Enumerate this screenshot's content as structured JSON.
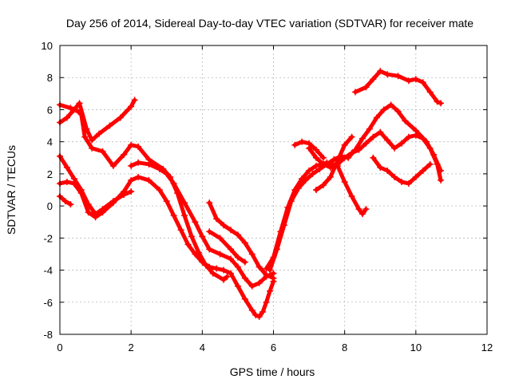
{
  "chart_data": {
    "type": "scatter",
    "title": "Day 256 of 2014, Sidereal Day-to-day VTEC variation (SDTVAR) for receiver mate",
    "xlabel": "GPS time / hours",
    "ylabel": "SDTVAR / TECUs",
    "xlim": [
      0,
      12
    ],
    "ylim": [
      -8,
      10
    ],
    "x_ticks": [
      0,
      2,
      4,
      6,
      8,
      10,
      12
    ],
    "y_ticks": [
      -8,
      -6,
      -4,
      -2,
      0,
      2,
      4,
      6,
      8,
      10
    ],
    "grid": true,
    "marker": "plus",
    "color": "#ff0000",
    "series": [
      {
        "x": [
          0.0,
          0.2,
          0.4,
          0.55,
          0.75,
          0.9,
          1.1,
          1.4,
          1.7,
          2.0,
          2.1
        ],
        "y": [
          5.2,
          5.5,
          6.0,
          6.4,
          4.8,
          4.1,
          4.5,
          5.0,
          5.5,
          6.2,
          6.6
        ]
      },
      {
        "x": [
          0.0,
          0.3,
          0.45,
          0.6,
          0.7,
          0.9,
          1.2,
          1.5,
          1.8,
          2.0,
          2.2,
          2.5,
          2.9,
          3.1,
          3.3,
          3.5,
          3.7,
          3.9,
          4.1,
          4.3,
          4.6,
          4.7
        ],
        "y": [
          6.3,
          6.1,
          6.0,
          5.7,
          4.3,
          3.6,
          3.4,
          2.5,
          3.2,
          3.8,
          3.7,
          2.9,
          2.3,
          1.8,
          0.8,
          -0.6,
          -1.9,
          -2.9,
          -3.7,
          -4.2,
          -4.6,
          -4.4
        ]
      },
      {
        "x": [
          0.0,
          0.2,
          0.4,
          0.6,
          0.8,
          1.0,
          1.2,
          1.5,
          1.8,
          2.0
        ],
        "y": [
          3.1,
          2.4,
          1.7,
          1.0,
          0.1,
          -0.5,
          -0.2,
          0.3,
          0.7,
          0.9
        ]
      },
      {
        "x": [
          0.0,
          0.2,
          0.4,
          0.6,
          0.8,
          1.0,
          1.2,
          1.5,
          1.8,
          2.0,
          2.2,
          2.5,
          2.8,
          3.0,
          3.2,
          3.4,
          3.6,
          3.8,
          4.0,
          4.2,
          4.4,
          4.6,
          4.8,
          5.0,
          5.2,
          5.4,
          5.5,
          5.6,
          5.7,
          5.8,
          5.9,
          6.0
        ],
        "y": [
          1.4,
          1.5,
          1.4,
          0.8,
          -0.4,
          -0.7,
          -0.4,
          0.2,
          0.9,
          1.6,
          1.8,
          1.6,
          1.0,
          0.3,
          -0.6,
          -1.5,
          -2.4,
          -3.0,
          -3.5,
          -3.8,
          -3.9,
          -4.0,
          -4.2,
          -5.0,
          -5.8,
          -6.5,
          -6.8,
          -6.9,
          -6.6,
          -6.0,
          -5.3,
          -4.7
        ]
      },
      {
        "x": [
          0.0,
          0.15,
          0.3
        ],
        "y": [
          0.6,
          0.3,
          0.1
        ]
      },
      {
        "x": [
          2.0,
          2.2,
          2.5,
          2.8,
          3.0,
          3.2,
          3.5,
          3.8,
          4.0,
          4.2,
          4.5,
          4.8,
          5.0,
          5.2,
          5.4,
          5.6,
          5.8,
          6.0
        ],
        "y": [
          2.5,
          2.7,
          2.6,
          2.3,
          2.0,
          1.4,
          0.2,
          -1.0,
          -1.9,
          -2.7,
          -3.0,
          -3.3,
          -3.8,
          -4.5,
          -5.0,
          -4.8,
          -4.4,
          -4.2
        ]
      },
      {
        "x": [
          4.2,
          4.4,
          4.6,
          4.8,
          5.0,
          5.2,
          5.4,
          5.6,
          5.8,
          6.0
        ],
        "y": [
          0.2,
          -0.8,
          -1.2,
          -1.5,
          -1.8,
          -2.3,
          -3.0,
          -3.8,
          -4.3,
          -4.5
        ]
      },
      {
        "x": [
          4.2,
          4.5,
          4.8,
          5.0,
          5.2
        ],
        "y": [
          -1.6,
          -2.0,
          -2.7,
          -3.2,
          -3.5
        ]
      },
      {
        "x": [
          5.8,
          6.0,
          6.2,
          6.4,
          6.6,
          6.8,
          7.0,
          7.2,
          7.5,
          7.8,
          8.0,
          8.2,
          8.4,
          8.5,
          8.6
        ],
        "y": [
          -3.9,
          -3.2,
          -1.6,
          -0.1,
          1.0,
          1.7,
          2.2,
          2.5,
          2.7,
          2.5,
          1.5,
          0.6,
          -0.2,
          -0.5,
          -0.2
        ]
      },
      {
        "x": [
          5.9,
          6.1,
          6.3,
          6.5,
          6.7,
          6.9,
          7.1,
          7.3,
          7.5,
          7.7,
          7.9,
          8.1,
          8.3,
          8.5,
          8.7,
          8.9,
          9.1,
          9.3,
          9.5,
          9.7,
          10.0,
          10.3,
          10.5,
          10.7
        ],
        "y": [
          -4.0,
          -2.7,
          -1.2,
          0.3,
          1.1,
          1.6,
          2.0,
          2.3,
          2.6,
          2.9,
          3.1,
          3.0,
          3.5,
          4.2,
          4.8,
          5.5,
          6.0,
          6.3,
          5.9,
          5.3,
          4.7,
          4.0,
          3.2,
          2.2
        ]
      },
      {
        "x": [
          7.0,
          7.2,
          7.4,
          7.6,
          7.8,
          8.0,
          8.2,
          8.4,
          8.6,
          8.8,
          9.0,
          9.2,
          9.4,
          9.6,
          9.8,
          10.0,
          10.2,
          10.4,
          10.6,
          10.7
        ],
        "y": [
          3.6,
          3.0,
          2.6,
          2.4,
          2.6,
          3.0,
          3.3,
          3.5,
          3.9,
          4.3,
          4.6,
          4.1,
          3.6,
          3.9,
          4.3,
          4.4,
          4.2,
          3.6,
          2.6,
          1.6
        ]
      },
      {
        "x": [
          6.6,
          6.8,
          7.0,
          7.2,
          7.4
        ],
        "y": [
          3.8,
          4.0,
          3.9,
          3.5,
          3.0
        ]
      },
      {
        "x": [
          7.2,
          7.4,
          7.6,
          7.8,
          8.0,
          8.2
        ],
        "y": [
          1.0,
          1.3,
          1.8,
          2.8,
          3.8,
          4.3
        ]
      },
      {
        "x": [
          8.8,
          9.0,
          9.2,
          9.4,
          9.6,
          9.8,
          10.0,
          10.2,
          10.4
        ],
        "y": [
          3.0,
          2.4,
          2.2,
          1.8,
          1.5,
          1.4,
          1.8,
          2.2,
          2.6
        ]
      },
      {
        "x": [
          8.3,
          8.6,
          8.8,
          9.0,
          9.2,
          9.5,
          9.8,
          10.0,
          10.2,
          10.4,
          10.6,
          10.7
        ],
        "y": [
          7.1,
          7.4,
          7.9,
          8.4,
          8.2,
          8.1,
          7.8,
          7.9,
          7.7,
          7.1,
          6.5,
          6.4
        ]
      }
    ]
  }
}
